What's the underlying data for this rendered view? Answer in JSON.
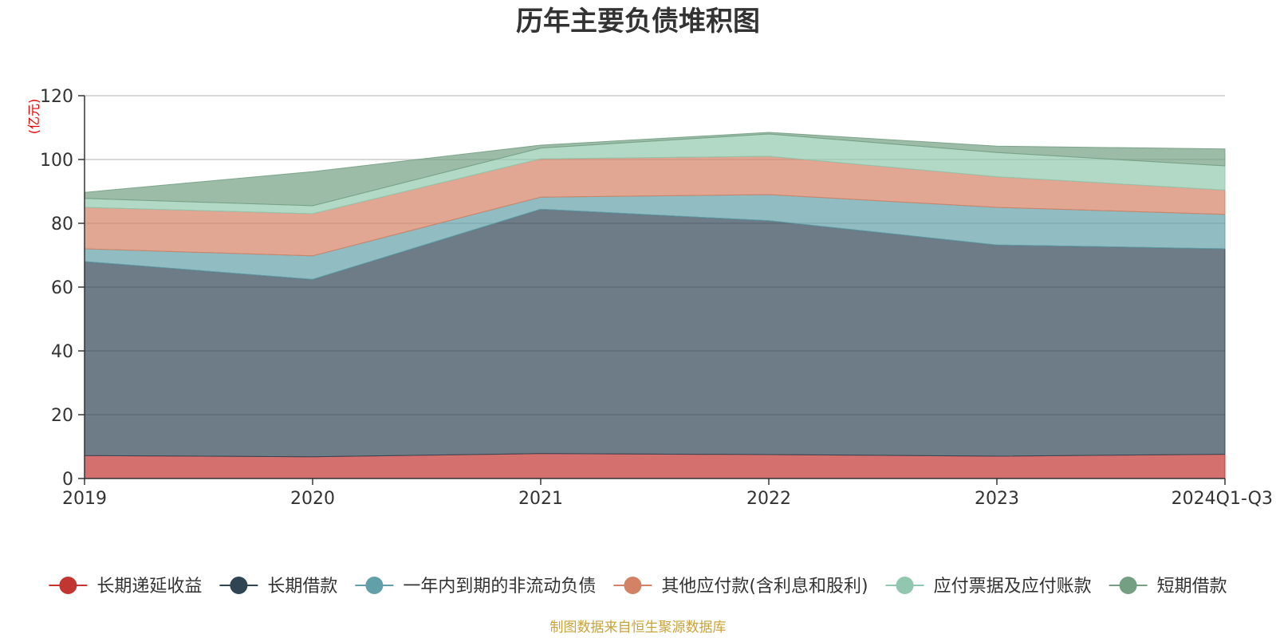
{
  "chart_data": {
    "type": "area",
    "stacked": true,
    "title": "历年主要负债堆积图",
    "unit_label": "(亿元)",
    "categories": [
      "2019",
      "2020",
      "2021",
      "2022",
      "2023",
      "2024Q1-Q3"
    ],
    "yticks": [
      "0",
      "20",
      "40",
      "60",
      "80",
      "100",
      "120"
    ],
    "ylim": [
      0,
      120
    ],
    "grid": true,
    "legend_position": "bottom",
    "series": [
      {
        "name": "长期递延收益",
        "color": "#c23531",
        "values": [
          7.2,
          6.8,
          7.8,
          7.5,
          7.0,
          7.6
        ]
      },
      {
        "name": "长期借款",
        "color": "#2f4554",
        "values": [
          60.8,
          55.6,
          76.6,
          73.3,
          66.2,
          64.4
        ]
      },
      {
        "name": "一年内到期的非流动负债",
        "color": "#61a0a8",
        "values": [
          4.0,
          7.4,
          3.8,
          8.2,
          11.8,
          10.8
        ]
      },
      {
        "name": "其他应付款(含利息和股利)",
        "color": "#d48265",
        "values": [
          13.0,
          13.2,
          12.0,
          12.0,
          9.6,
          7.6
        ]
      },
      {
        "name": "应付票据及应付账款",
        "color": "#91c7ae",
        "values": [
          2.8,
          2.5,
          3.4,
          7.0,
          7.6,
          7.6
        ]
      },
      {
        "name": "短期借款",
        "color": "#749f83",
        "values": [
          1.9,
          10.7,
          0.9,
          0.5,
          2.0,
          5.3
        ]
      }
    ],
    "source": "制图数据来自恒生聚源数据库"
  }
}
